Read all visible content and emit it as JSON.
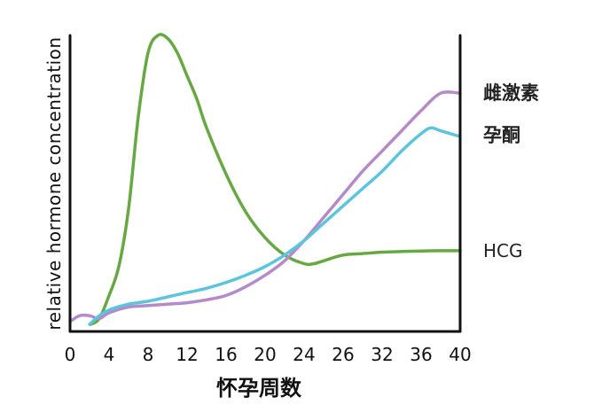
{
  "chart_data": {
    "type": "line",
    "title": "",
    "xlabel": "怀孕周数",
    "ylabel": "relative hormone concentration",
    "xlim": [
      0,
      40
    ],
    "ylim": [
      0,
      1
    ],
    "x_ticks": [
      "0",
      "4",
      "8",
      "12",
      "16",
      "20",
      "24",
      "26",
      "32",
      "36",
      "40"
    ],
    "grid": false,
    "series": [
      {
        "name": "雌激素",
        "color": "#b58ac8",
        "x": [
          0,
          1,
          2,
          3,
          4,
          6,
          8,
          10,
          12,
          14,
          16,
          18,
          20,
          22,
          24,
          26,
          28,
          30,
          32,
          34,
          36,
          38,
          40
        ],
        "y": [
          0.01,
          0.03,
          0.03,
          0.02,
          0.04,
          0.06,
          0.065,
          0.07,
          0.075,
          0.085,
          0.1,
          0.13,
          0.17,
          0.22,
          0.29,
          0.37,
          0.45,
          0.53,
          0.6,
          0.67,
          0.74,
          0.8,
          0.8
        ]
      },
      {
        "name": "孕酮",
        "color": "#5cc4dc",
        "x": [
          2,
          3,
          4,
          6,
          8,
          10,
          12,
          14,
          16,
          18,
          20,
          22,
          24,
          26,
          28,
          30,
          32,
          34,
          36,
          37,
          38,
          40
        ],
        "y": [
          0.0,
          0.03,
          0.05,
          0.07,
          0.08,
          0.095,
          0.11,
          0.125,
          0.145,
          0.17,
          0.2,
          0.24,
          0.29,
          0.35,
          0.41,
          0.47,
          0.53,
          0.6,
          0.66,
          0.68,
          0.67,
          0.65
        ]
      },
      {
        "name": "HCG",
        "color": "#68a843",
        "x": [
          2.1,
          3,
          4,
          5,
          6,
          7,
          8,
          9,
          10,
          11,
          12,
          13,
          14,
          16,
          18,
          20,
          22,
          24,
          25,
          26,
          28,
          30,
          32,
          34,
          36,
          38,
          40
        ],
        "y": [
          0.0,
          0.02,
          0.1,
          0.2,
          0.4,
          0.72,
          0.94,
          1.0,
          0.99,
          0.94,
          0.86,
          0.78,
          0.68,
          0.52,
          0.39,
          0.3,
          0.24,
          0.21,
          0.21,
          0.22,
          0.24,
          0.245,
          0.25,
          0.252,
          0.254,
          0.255,
          0.255
        ]
      }
    ],
    "series_labels": [
      "雌激素",
      "孕酮",
      "HCG"
    ]
  }
}
